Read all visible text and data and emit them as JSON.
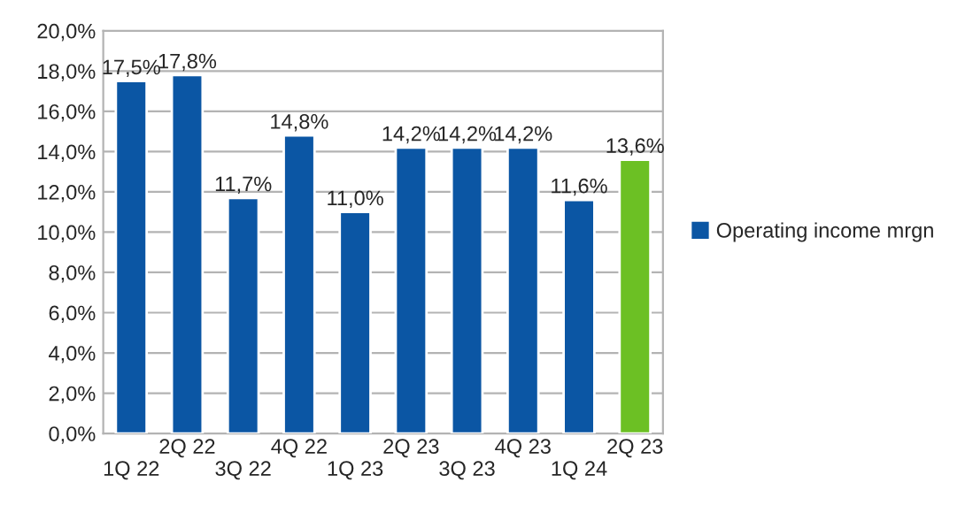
{
  "chart_data": {
    "type": "bar",
    "categories": [
      "1Q 22",
      "2Q 22",
      "3Q 22",
      "4Q 22",
      "1Q 23",
      "2Q 23",
      "3Q 23",
      "4Q 23",
      "1Q 24",
      "2Q 23"
    ],
    "series": [
      {
        "name": "Operating income mrgn",
        "color": "#0b56a4",
        "colors": [
          "#0b56a4",
          "#0b56a4",
          "#0b56a4",
          "#0b56a4",
          "#0b56a4",
          "#0b56a4",
          "#0b56a4",
          "#0b56a4",
          "#0b56a4",
          "#6cc024"
        ],
        "values": [
          17.5,
          17.8,
          11.7,
          14.8,
          11.0,
          14.2,
          14.2,
          14.2,
          11.6,
          13.6
        ],
        "value_labels": [
          "17,5%",
          "17,8%",
          "11,7%",
          "14,8%",
          "11,0%",
          "14,2%",
          "14,2%",
          "14,2%",
          "11,6%",
          "13,6%"
        ]
      }
    ],
    "ylim": [
      0,
      20
    ],
    "yticks": [
      {
        "value": 0,
        "label": "0,0%"
      },
      {
        "value": 2,
        "label": "2,0%"
      },
      {
        "value": 4,
        "label": "4,0%"
      },
      {
        "value": 6,
        "label": "6,0%"
      },
      {
        "value": 8,
        "label": "8,0%"
      },
      {
        "value": 10,
        "label": "10,0%"
      },
      {
        "value": 12,
        "label": "12,0%"
      },
      {
        "value": 14,
        "label": "14,0%"
      },
      {
        "value": 16,
        "label": "16,0%"
      },
      {
        "value": 18,
        "label": "18,0%"
      },
      {
        "value": 20,
        "label": "20,0%"
      }
    ],
    "grid": "y",
    "legend": "right"
  }
}
